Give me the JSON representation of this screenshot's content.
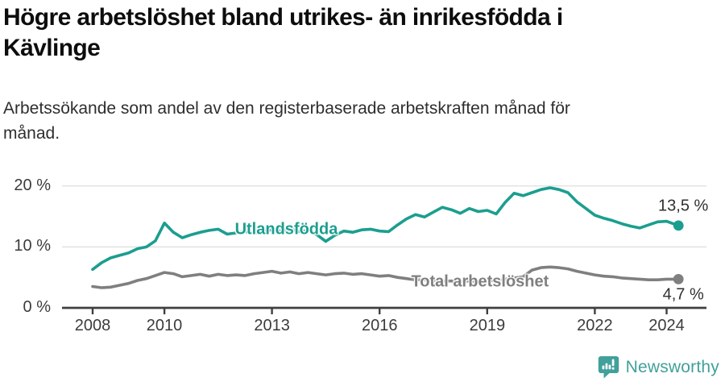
{
  "header": {
    "title": "Högre arbetslöshet bland utrikes- än inrikesfödda i\nKävlinge",
    "subtitle": "Arbetssökande som andel av den registerbaserade arbetskraften månad för\nmånad."
  },
  "footer": {
    "brand": "Newsworthy",
    "brand_color": "#42a09b",
    "logo_icon": "newsworthy-speech-bubble-bar-chart-icon"
  },
  "chart_data": {
    "type": "line",
    "title": "",
    "xlabel": "",
    "ylabel": "",
    "grid": "horizontal",
    "legend_position": "inline-labels",
    "xlim": [
      2007.8,
      2025.1
    ],
    "ylim": [
      0,
      21.5
    ],
    "y_ticks": [
      {
        "value": 0,
        "label": "0 %"
      },
      {
        "value": 10,
        "label": "10 %"
      },
      {
        "value": 20,
        "label": "20 %"
      }
    ],
    "x_ticks": [
      {
        "value": 2008,
        "label": "2008"
      },
      {
        "value": 2010,
        "label": "2010"
      },
      {
        "value": 2013,
        "label": "2013"
      },
      {
        "value": 2016,
        "label": "2016"
      },
      {
        "value": 2019,
        "label": "2019"
      },
      {
        "value": 2022,
        "label": "2022"
      },
      {
        "value": 2024,
        "label": "2024"
      }
    ],
    "x": [
      2008,
      2008.25,
      2008.5,
      2008.75,
      2009,
      2009.25,
      2009.5,
      2009.75,
      2010,
      2010.25,
      2010.5,
      2010.75,
      2011,
      2011.25,
      2011.5,
      2011.75,
      2012,
      2012.25,
      2012.5,
      2012.75,
      2013,
      2013.25,
      2013.5,
      2013.75,
      2014,
      2014.25,
      2014.5,
      2014.75,
      2015,
      2015.25,
      2015.5,
      2015.75,
      2016,
      2016.25,
      2016.5,
      2016.75,
      2017,
      2017.25,
      2017.5,
      2017.75,
      2018,
      2018.25,
      2018.5,
      2018.75,
      2019,
      2019.25,
      2019.5,
      2019.75,
      2020,
      2020.25,
      2020.5,
      2020.75,
      2021,
      2021.25,
      2021.5,
      2021.75,
      2022,
      2022.25,
      2022.5,
      2022.75,
      2023,
      2023.25,
      2023.5,
      2023.75,
      2024,
      2024.33
    ],
    "series": [
      {
        "name": "Utlandsfödda",
        "color": "#1b9e8f",
        "end_label": "13,5 %",
        "end_label_side": "above",
        "label_pos": {
          "x": 2013.4,
          "y": 12.8
        },
        "values": [
          6.3,
          7.4,
          8.2,
          8.6,
          9.0,
          9.7,
          10.0,
          11.0,
          13.9,
          12.4,
          11.5,
          12.0,
          12.4,
          12.7,
          12.9,
          12.1,
          12.3,
          12.5,
          12.2,
          12.6,
          12.8,
          12.6,
          13.0,
          12.5,
          12.7,
          12.0,
          10.9,
          11.9,
          12.6,
          12.4,
          12.8,
          12.9,
          12.6,
          12.5,
          13.6,
          14.6,
          15.3,
          14.9,
          15.7,
          16.5,
          16.1,
          15.5,
          16.3,
          15.8,
          16.0,
          15.4,
          17.3,
          18.8,
          18.4,
          18.9,
          19.4,
          19.7,
          19.4,
          18.9,
          17.4,
          16.3,
          15.2,
          14.7,
          14.3,
          13.8,
          13.4,
          13.1,
          13.6,
          14.1,
          14.2,
          13.5
        ]
      },
      {
        "name": "Total arbetslöshet",
        "color": "#7f7f7f",
        "end_label": "4,7 %",
        "end_label_side": "below",
        "label_pos": {
          "x": 2018.8,
          "y": 4.2
        },
        "values": [
          3.5,
          3.3,
          3.4,
          3.7,
          4.0,
          4.5,
          4.8,
          5.3,
          5.8,
          5.6,
          5.1,
          5.3,
          5.5,
          5.2,
          5.5,
          5.3,
          5.4,
          5.3,
          5.6,
          5.8,
          6.0,
          5.7,
          5.9,
          5.6,
          5.8,
          5.6,
          5.4,
          5.6,
          5.7,
          5.5,
          5.6,
          5.4,
          5.2,
          5.3,
          5.0,
          4.8,
          4.6,
          4.6,
          4.5,
          4.4,
          4.4,
          4.3,
          4.4,
          4.3,
          4.4,
          4.5,
          4.7,
          4.9,
          5.1,
          6.2,
          6.6,
          6.7,
          6.6,
          6.4,
          6.0,
          5.7,
          5.4,
          5.2,
          5.1,
          4.9,
          4.8,
          4.7,
          4.6,
          4.6,
          4.7,
          4.7
        ]
      }
    ]
  }
}
